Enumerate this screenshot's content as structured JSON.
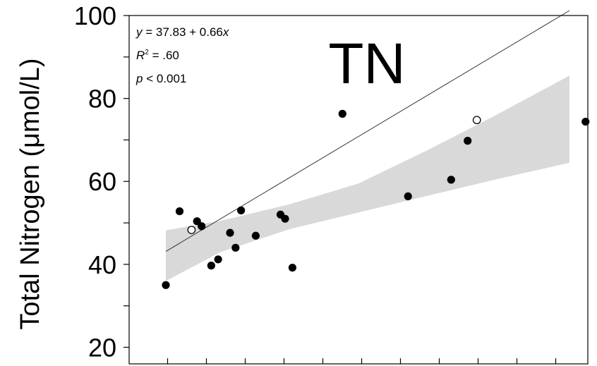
{
  "chart_data": {
    "type": "scatter",
    "title": "TN",
    "xlabel": "",
    "ylabel": "Total Nitrogen (μmol/L)",
    "yticks": [
      "20",
      "40",
      "60",
      "80",
      "100"
    ],
    "ylim": [
      16,
      100
    ],
    "xlim": [
      0,
      100
    ],
    "grid": false,
    "annotation": {
      "equation_lhs": "y",
      "equation_rhs": " = 37.83 + 0.66",
      "equation_var": "x",
      "r2_label": "R",
      "r2_sup": "2",
      "r2_value": " = .60",
      "p_label": "p",
      "p_value": " < 0.001"
    },
    "fit": {
      "intercept": 37.83,
      "slope": 0.66,
      "x_start": 8,
      "x_end": 96
    },
    "confidence_band": {
      "upper": [
        [
          8,
          48.2
        ],
        [
          20,
          50.5
        ],
        [
          35,
          54.5
        ],
        [
          50,
          59.5
        ],
        [
          65,
          67.5
        ],
        [
          80,
          76.0
        ],
        [
          96,
          85.5
        ]
      ],
      "lower": [
        [
          8,
          36.0
        ],
        [
          20,
          43.0
        ],
        [
          35,
          48.5
        ],
        [
          50,
          52.5
        ],
        [
          65,
          56.5
        ],
        [
          80,
          60.5
        ],
        [
          96,
          64.5
        ]
      ]
    },
    "series": [
      {
        "marker": "filled",
        "points": [
          [
            8,
            35.0
          ],
          [
            11,
            52.8
          ],
          [
            14.8,
            50.4
          ],
          [
            15.8,
            49.2
          ],
          [
            17.9,
            39.7
          ],
          [
            19.4,
            41.2
          ],
          [
            22,
            47.6
          ],
          [
            23.2,
            44.0
          ],
          [
            24.4,
            53.0
          ],
          [
            27.6,
            46.9
          ],
          [
            33,
            52.0
          ],
          [
            34,
            51.0
          ],
          [
            35.6,
            39.2
          ],
          [
            46.5,
            76.3
          ],
          [
            60.8,
            56.4
          ],
          [
            70.2,
            60.4
          ],
          [
            73.8,
            69.8
          ],
          [
            99.5,
            74.4
          ]
        ]
      },
      {
        "marker": "open",
        "points": [
          [
            13.6,
            48.3
          ],
          [
            75.8,
            74.8
          ]
        ]
      }
    ]
  }
}
